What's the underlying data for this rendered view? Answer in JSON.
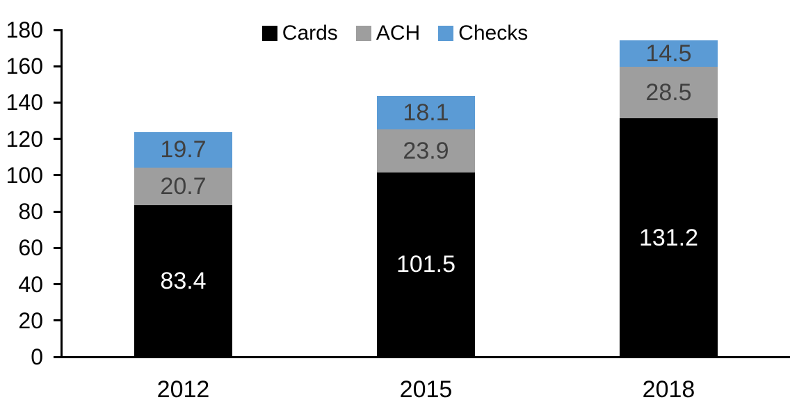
{
  "chart_data": {
    "type": "bar",
    "stacked": true,
    "title": "",
    "xlabel": "",
    "ylabel": "",
    "categories": [
      "2012",
      "2015",
      "2018"
    ],
    "series": [
      {
        "name": "Cards",
        "color": "#000000",
        "label_color": "#ffffff",
        "values": [
          83.4,
          101.5,
          131.2
        ]
      },
      {
        "name": "ACH",
        "color": "#9e9e9e",
        "label_color": "#404040",
        "values": [
          20.7,
          23.9,
          28.5
        ]
      },
      {
        "name": "Checks",
        "color": "#5b9bd5",
        "label_color": "#404040",
        "values": [
          19.7,
          18.1,
          14.5
        ]
      }
    ],
    "ylim": [
      0,
      180
    ],
    "yticks": [
      0,
      20,
      40,
      60,
      80,
      100,
      120,
      140,
      160,
      180
    ],
    "grid": false,
    "legend_position": "top-center",
    "axis_color": "#000000"
  }
}
